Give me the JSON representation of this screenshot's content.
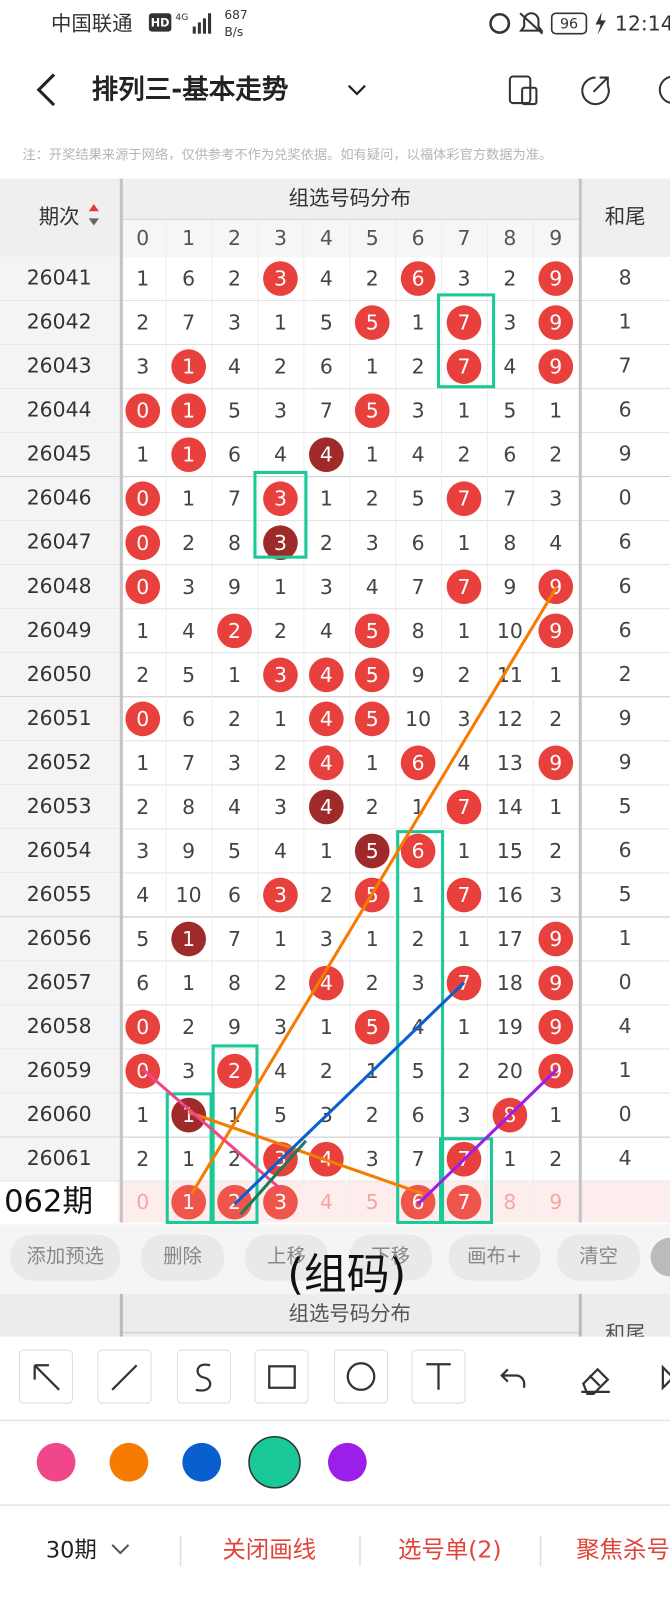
{
  "status_bar": {
    "carrier": "中国联通",
    "hd": "HD",
    "network": "4G",
    "speed": "687",
    "speed_unit": "B/s",
    "battery": "96",
    "time": "12:14"
  },
  "header": {
    "title": "排列三-基本走势"
  },
  "notice": "注：开奖结果来源于网络，仅供参考不作为兑奖依据。如有疑问，以福体彩官方数据为准。",
  "table": {
    "group_header": "组选号码分布",
    "period_header": "期次",
    "tail_header": "和尾",
    "digits": [
      "0",
      "1",
      "2",
      "3",
      "4",
      "5",
      "6",
      "7",
      "8",
      "9"
    ],
    "rows": [
      {
        "period": "26041",
        "cells": [
          "1",
          "6",
          "2",
          "3",
          "4",
          "2",
          "6",
          "3",
          "2",
          "9"
        ],
        "red": [
          3,
          6,
          9
        ],
        "dark": [],
        "tail": "8"
      },
      {
        "period": "26042",
        "cells": [
          "2",
          "7",
          "3",
          "1",
          "5",
          "5",
          "1",
          "7",
          "3",
          "9"
        ],
        "red": [
          5,
          7,
          9
        ],
        "dark": [],
        "tail": "1"
      },
      {
        "period": "26043",
        "cells": [
          "3",
          "1",
          "4",
          "2",
          "6",
          "1",
          "2",
          "7",
          "4",
          "9"
        ],
        "red": [
          1,
          7,
          9
        ],
        "dark": [],
        "tail": "7"
      },
      {
        "period": "26044",
        "cells": [
          "0",
          "1",
          "5",
          "3",
          "7",
          "5",
          "3",
          "1",
          "5",
          "1"
        ],
        "red": [
          0,
          1,
          5
        ],
        "dark": [],
        "tail": "6"
      },
      {
        "period": "26045",
        "cells": [
          "1",
          "1",
          "6",
          "4",
          "4",
          "1",
          "4",
          "2",
          "6",
          "2"
        ],
        "red": [
          1
        ],
        "dark": [
          4
        ],
        "tail": "9"
      },
      {
        "period": "26046",
        "cells": [
          "0",
          "1",
          "7",
          "3",
          "1",
          "2",
          "5",
          "7",
          "7",
          "3"
        ],
        "red": [
          0,
          3,
          7
        ],
        "dark": [],
        "tail": "0"
      },
      {
        "period": "26047",
        "cells": [
          "0",
          "2",
          "8",
          "3",
          "2",
          "3",
          "6",
          "1",
          "8",
          "4"
        ],
        "red": [
          0
        ],
        "dark": [
          3
        ],
        "tail": "6"
      },
      {
        "period": "26048",
        "cells": [
          "0",
          "3",
          "9",
          "1",
          "3",
          "4",
          "7",
          "7",
          "9",
          "9"
        ],
        "red": [
          0,
          7,
          9
        ],
        "dark": [],
        "tail": "6"
      },
      {
        "period": "26049",
        "cells": [
          "1",
          "4",
          "2",
          "2",
          "4",
          "5",
          "8",
          "1",
          "10",
          "9"
        ],
        "red": [
          2,
          5,
          9
        ],
        "dark": [],
        "tail": "6"
      },
      {
        "period": "26050",
        "cells": [
          "2",
          "5",
          "1",
          "3",
          "4",
          "5",
          "9",
          "2",
          "11",
          "1"
        ],
        "red": [
          3,
          4,
          5
        ],
        "dark": [],
        "tail": "2"
      },
      {
        "period": "26051",
        "cells": [
          "0",
          "6",
          "2",
          "1",
          "4",
          "5",
          "10",
          "3",
          "12",
          "2"
        ],
        "red": [
          0,
          4,
          5
        ],
        "dark": [],
        "tail": "9"
      },
      {
        "period": "26052",
        "cells": [
          "1",
          "7",
          "3",
          "2",
          "4",
          "1",
          "6",
          "4",
          "13",
          "9"
        ],
        "red": [
          4,
          6,
          9
        ],
        "dark": [],
        "tail": "9"
      },
      {
        "period": "26053",
        "cells": [
          "2",
          "8",
          "4",
          "3",
          "4",
          "2",
          "1",
          "7",
          "14",
          "1"
        ],
        "red": [
          7
        ],
        "dark": [
          4
        ],
        "tail": "5"
      },
      {
        "period": "26054",
        "cells": [
          "3",
          "9",
          "5",
          "4",
          "1",
          "5",
          "6",
          "1",
          "15",
          "2"
        ],
        "red": [
          6
        ],
        "dark": [
          5
        ],
        "tail": "6"
      },
      {
        "period": "26055",
        "cells": [
          "4",
          "10",
          "6",
          "3",
          "2",
          "5",
          "1",
          "7",
          "16",
          "3"
        ],
        "red": [
          3,
          5,
          7
        ],
        "dark": [],
        "tail": "5"
      },
      {
        "period": "26056",
        "cells": [
          "5",
          "1",
          "7",
          "1",
          "3",
          "1",
          "2",
          "1",
          "17",
          "9"
        ],
        "red": [
          9
        ],
        "dark": [
          1
        ],
        "tail": "1"
      },
      {
        "period": "26057",
        "cells": [
          "6",
          "1",
          "8",
          "2",
          "4",
          "2",
          "3",
          "7",
          "18",
          "9"
        ],
        "red": [
          4,
          7,
          9
        ],
        "dark": [],
        "tail": "0"
      },
      {
        "period": "26058",
        "cells": [
          "0",
          "2",
          "9",
          "3",
          "1",
          "5",
          "4",
          "1",
          "19",
          "9"
        ],
        "red": [
          0,
          5,
          9
        ],
        "dark": [],
        "tail": "4"
      },
      {
        "period": "26059",
        "cells": [
          "0",
          "3",
          "2",
          "4",
          "2",
          "1",
          "5",
          "2",
          "20",
          "9"
        ],
        "red": [
          0,
          2,
          9
        ],
        "dark": [],
        "tail": "1"
      },
      {
        "period": "26060",
        "cells": [
          "1",
          "1",
          "1",
          "5",
          "3",
          "2",
          "6",
          "3",
          "8",
          "1"
        ],
        "red": [
          8
        ],
        "dark": [
          1
        ],
        "tail": "0"
      },
      {
        "period": "26061",
        "cells": [
          "2",
          "1",
          "2",
          "3",
          "4",
          "3",
          "7",
          "7",
          "1",
          "2"
        ],
        "red": [
          3,
          4,
          7
        ],
        "dark": [],
        "tail": "4"
      }
    ],
    "next_row": {
      "label": "062期",
      "cells": [
        "0",
        "1",
        "2",
        "3",
        "4",
        "5",
        "6",
        "7",
        "8",
        "9"
      ],
      "red": [
        1,
        2,
        3,
        6,
        7
      ]
    }
  },
  "toolbar": {
    "buttons": [
      "添加预选",
      "删除",
      "上移",
      "下移",
      "画布+",
      "清空"
    ]
  },
  "overlay_text": "(组码)",
  "palette": [
    "#f0468a",
    "#f57c00",
    "#0a5fcf",
    "#19c997",
    "#9b1fe8"
  ],
  "footer": {
    "period_select": "30期",
    "close_draw": "关闭画线",
    "pick_list": "选号单(2)",
    "focus_kill": "聚焦杀号"
  }
}
